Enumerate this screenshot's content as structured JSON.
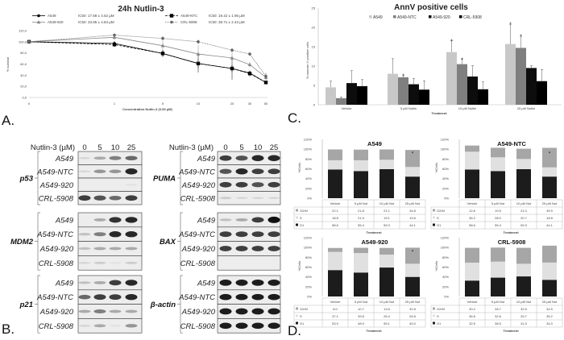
{
  "panel_labels": {
    "a": "A.",
    "b": "B.",
    "c": "C.",
    "d": "D."
  },
  "chart_data": [
    {
      "id": "A",
      "type": "line",
      "title": "24h Nutlin-3",
      "xlabel": "Concentration Nutlin-3 (0-50 µM)",
      "ylabel": "% survival",
      "x": [
        "0",
        "1",
        "5",
        "10",
        "20",
        "30",
        "50"
      ],
      "y_ticks": [
        "0,0",
        "20,0",
        "40,0",
        "60,0",
        "80,0",
        "100,0",
        "120,0"
      ],
      "ylim": [
        0,
        120
      ],
      "series": [
        {
          "name": "A549",
          "ic50": "IC50: 17.68 ± 4.52 µM",
          "values": [
            100,
            97,
            79,
            61,
            52,
            44,
            27
          ],
          "errors": [
            1,
            4,
            6,
            8,
            6,
            4,
            3
          ],
          "color": "#000000",
          "dash": "solid",
          "marker": "circle"
        },
        {
          "name": "A549-NTC",
          "ic50": "IC50: 19.42 ± 1.96 µM",
          "values": [
            100,
            95,
            79,
            61,
            52,
            43,
            27
          ],
          "errors": [
            1,
            4,
            6,
            16,
            20,
            5,
            3
          ],
          "color": "#000000",
          "dash": "dashed",
          "marker": "square"
        },
        {
          "name": "A549-920",
          "ic50": "IC50: 33.85 ± 4.84 µM",
          "values": [
            100,
            108,
            93,
            78,
            71,
            59,
            36
          ],
          "errors": [
            1,
            5,
            8,
            16,
            11,
            5,
            8
          ],
          "color": "#888888",
          "dash": "solid",
          "marker": "triangle"
        },
        {
          "name": "CRL-5908",
          "ic50": "IC50: 38.71 ± 2.43 µM",
          "values": [
            100,
            112,
            106,
            100,
            85,
            78,
            38
          ],
          "errors": [
            1,
            3,
            4,
            4,
            3,
            3,
            6
          ],
          "color": "#666666",
          "dash": "dotted",
          "marker": "circle"
        }
      ]
    },
    {
      "id": "C",
      "type": "bar",
      "title": "AnnV positive cells",
      "xlabel": "Treatment",
      "ylabel": "% annexin V positive cells",
      "categories": [
        "Vehicle",
        "5 µM Nutlin",
        "10 µM Nutlin",
        "25 µM Nutlin"
      ],
      "y_ticks": [
        "0",
        "5",
        "10",
        "15",
        "20",
        "25"
      ],
      "ylim": [
        0,
        25
      ],
      "series": [
        {
          "name": "A549",
          "color": "#c8c8c8",
          "values": [
            4.5,
            8.0,
            13.6,
            15.7
          ],
          "errors": [
            1.6,
            3.9,
            2.9,
            5.1
          ],
          "significant": [
            false,
            false,
            true,
            true
          ]
        },
        {
          "name": "A549-NTC",
          "color": "#7f7f7f",
          "values": [
            1.7,
            7.1,
            10.5,
            14.7
          ],
          "errors": [
            0.3,
            0.4,
            1.2,
            3.0
          ],
          "significant": [
            false,
            true,
            true,
            true
          ]
        },
        {
          "name": "A549-920",
          "color": "#0d0d0d",
          "values": [
            5.6,
            5.3,
            7.3,
            9.5
          ],
          "errors": [
            3.2,
            1.5,
            2.8,
            0.6
          ],
          "significant": [
            false,
            false,
            false,
            false
          ]
        },
        {
          "name": "CRL-5908",
          "color": "#000000",
          "values": [
            4.8,
            3.9,
            4.0,
            6.1
          ],
          "errors": [
            1.7,
            2.3,
            1.9,
            3.0
          ],
          "significant": [
            false,
            false,
            false,
            false
          ]
        }
      ]
    },
    {
      "id": "D1",
      "type": "stacked-bar",
      "title": "A549",
      "xlabel": "Treatment",
      "ylabel": "%Cells",
      "categories": [
        "Vehicle",
        "5  µM Nut",
        "10  µM Nut",
        "25  µM Nut"
      ],
      "y_ticks": [
        "0%",
        "20%",
        "40%",
        "60%",
        "80%",
        "100%",
        "120%"
      ],
      "ylim": [
        0,
        120
      ],
      "series": [
        {
          "name": "G2/M",
          "color": "#a6a6a6",
          "values": [
            "22.1",
            "21.8",
            "21.1",
            "34.8"
          ]
        },
        {
          "name": "S",
          "color": "#e0e0e0",
          "values": [
            "18.8",
            "21.9",
            "19.1",
            "19.6"
          ]
        },
        {
          "name": "G1",
          "color": "#1c1c1c",
          "values": [
            "58.6",
            "55.4",
            "59.3",
            "44.1"
          ]
        }
      ],
      "significant": [
        false,
        false,
        false,
        true
      ]
    },
    {
      "id": "D2",
      "type": "stacked-bar",
      "title": "A549-NTC",
      "xlabel": "Treatment",
      "ylabel": "%Cells",
      "categories": [
        "Vehicle",
        "5  µM Nut",
        "10  µM Nut",
        "25  µM Nut"
      ],
      "y_ticks": [
        "0%",
        "20%",
        "40%",
        "60%",
        "80%",
        "100%",
        "120%"
      ],
      "ylim": [
        0,
        120
      ],
      "series": [
        {
          "name": "G2/M",
          "color": "#a6a6a6",
          "values": [
            "12.6",
            "19.5",
            "21.0",
            "39.9"
          ]
        },
        {
          "name": "S",
          "color": "#e0e0e0",
          "values": [
            "36.2",
            "28.0",
            "20.7",
            "18.8"
          ]
        },
        {
          "name": "G1",
          "color": "#1c1c1c",
          "values": [
            "58.6",
            "55.4",
            "59.3",
            "44.1"
          ]
        }
      ],
      "significant": [
        false,
        false,
        false,
        true
      ]
    },
    {
      "id": "D3",
      "type": "stacked-bar",
      "title": "A549-920",
      "xlabel": "Treatment",
      "ylabel": "%Cells",
      "categories": [
        "Vehicle",
        "5  µM Nut",
        "10  µM Nut",
        "25  µM Nut"
      ],
      "y_ticks": [
        "0%",
        "20%",
        "40%",
        "60%",
        "80%",
        "100%",
        "120%"
      ],
      "ylim": [
        0,
        120
      ],
      "series": [
        {
          "name": "G2/M",
          "color": "#a6a6a6",
          "values": [
            "8.0",
            "10.7",
            "13.6",
            "32.8"
          ]
        },
        {
          "name": "S",
          "color": "#e0e0e0",
          "values": [
            "37.1",
            "39.8",
            "26.4",
            "26.8"
          ]
        },
        {
          "name": "G1",
          "color": "#1c1c1c",
          "values": [
            "53.9",
            "48.9",
            "59.1",
            "40.0"
          ]
        }
      ],
      "significant": [
        false,
        false,
        false,
        true
      ]
    },
    {
      "id": "D4",
      "type": "stacked-bar",
      "title": "CRL-5908",
      "xlabel": "Treatment",
      "ylabel": "%Cells",
      "categories": [
        "Vehicle",
        "5  µM Nut",
        "10  µM Nut",
        "25  µM Nut"
      ],
      "y_ticks": [
        "0%",
        "20%",
        "40%",
        "60%",
        "80%",
        "100%",
        "120%"
      ],
      "ylim": [
        0,
        120
      ],
      "series": [
        {
          "name": "G2/M",
          "color": "#a6a6a6",
          "values": [
            "30.2",
            "28.7",
            "32.6",
            "34.5"
          ]
        },
        {
          "name": "S",
          "color": "#e0e0e0",
          "values": [
            "36.6",
            "32.6",
            "25.7",
            "35.2"
          ]
        },
        {
          "name": "G1",
          "color": "#1c1c1c",
          "values": [
            "32.5",
            "38.5",
            "41.0",
            "34.0"
          ]
        }
      ],
      "significant": [
        false,
        false,
        false,
        false
      ]
    }
  ],
  "western_blot": {
    "header_label": "Nutlin-3 (µM)",
    "doses": [
      "0",
      "5",
      "10",
      "25"
    ],
    "cell_lines": [
      "A549",
      "A549-NTC",
      "A549-920",
      "CRL-5908"
    ],
    "left_column": [
      {
        "protein": "p53",
        "band_intensity": [
          [
            0.1,
            0.3,
            0.5,
            0.6
          ],
          [
            0.1,
            0.4,
            0.4,
            0.9
          ],
          [
            0,
            0,
            0,
            0.05
          ],
          [
            0.8,
            0.7,
            0.6,
            0.8
          ]
        ]
      },
      {
        "protein": "MDM2",
        "band_intensity": [
          [
            0,
            0.3,
            0.85,
            0.9
          ],
          [
            0.2,
            0.5,
            0.9,
            0.9
          ],
          [
            0.2,
            0.3,
            0.3,
            0.3
          ],
          [
            0.1,
            0.15,
            0.05,
            0.15
          ]
        ]
      },
      {
        "protein": "p21",
        "band_intensity": [
          [
            0.2,
            0.3,
            0.8,
            0.9
          ],
          [
            0.6,
            0.8,
            0.8,
            0.9
          ],
          [
            0.3,
            0.5,
            0.3,
            0.3
          ],
          [
            0.1,
            0.3,
            0.05,
            0.4
          ]
        ]
      }
    ],
    "right_column": [
      {
        "protein": "PUMA",
        "band_intensity": [
          [
            0.8,
            0.7,
            0.9,
            0.9
          ],
          [
            0.7,
            0.9,
            0.8,
            0.8
          ],
          [
            0.8,
            0.8,
            0.7,
            0.8
          ],
          [
            0.15,
            0.1,
            0.1,
            0.1
          ]
        ]
      },
      {
        "protein": "BAX",
        "band_intensity": [
          [
            0.2,
            0.3,
            0.8,
            1
          ],
          [
            0.8,
            0.8,
            0.8,
            0.8
          ],
          [
            0.8,
            0.8,
            0.8,
            0.8
          ],
          [
            0,
            0,
            0,
            0
          ]
        ]
      },
      {
        "protein": "β-actin",
        "band_intensity": [
          [
            0.95,
            0.95,
            0.95,
            0.95
          ],
          [
            0.95,
            0.95,
            0.95,
            0.95
          ],
          [
            0.95,
            0.95,
            0.95,
            0.95
          ],
          [
            0.95,
            0.95,
            0.95,
            0.95
          ]
        ]
      }
    ]
  }
}
